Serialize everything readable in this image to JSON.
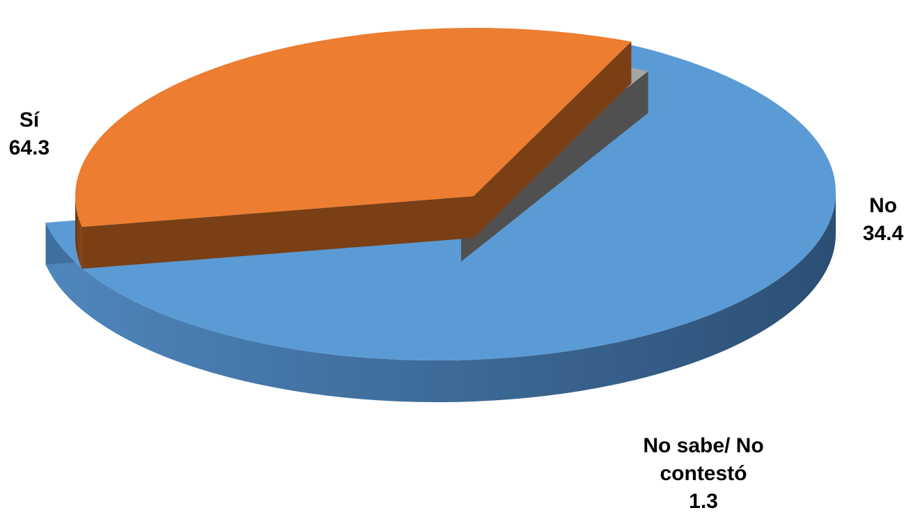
{
  "chart_data": {
    "type": "pie",
    "style": "3d-exploded",
    "title": "",
    "categories": [
      "Sí",
      "No",
      "No sabe/ No contestó"
    ],
    "values": [
      64.3,
      34.4,
      1.3
    ],
    "colors": [
      "#5b9bd5",
      "#ed7d31",
      "#a5a5a5"
    ],
    "side_colors": [
      "#3f6f9e",
      "#7a3f14",
      "#505050"
    ],
    "labels": [
      {
        "lines": [
          "Sí",
          "64.3"
        ]
      },
      {
        "lines": [
          "No",
          "34.4"
        ]
      },
      {
        "lines": [
          "No sabe/ No",
          "contestó",
          "1.3"
        ]
      }
    ],
    "legend": "none"
  }
}
